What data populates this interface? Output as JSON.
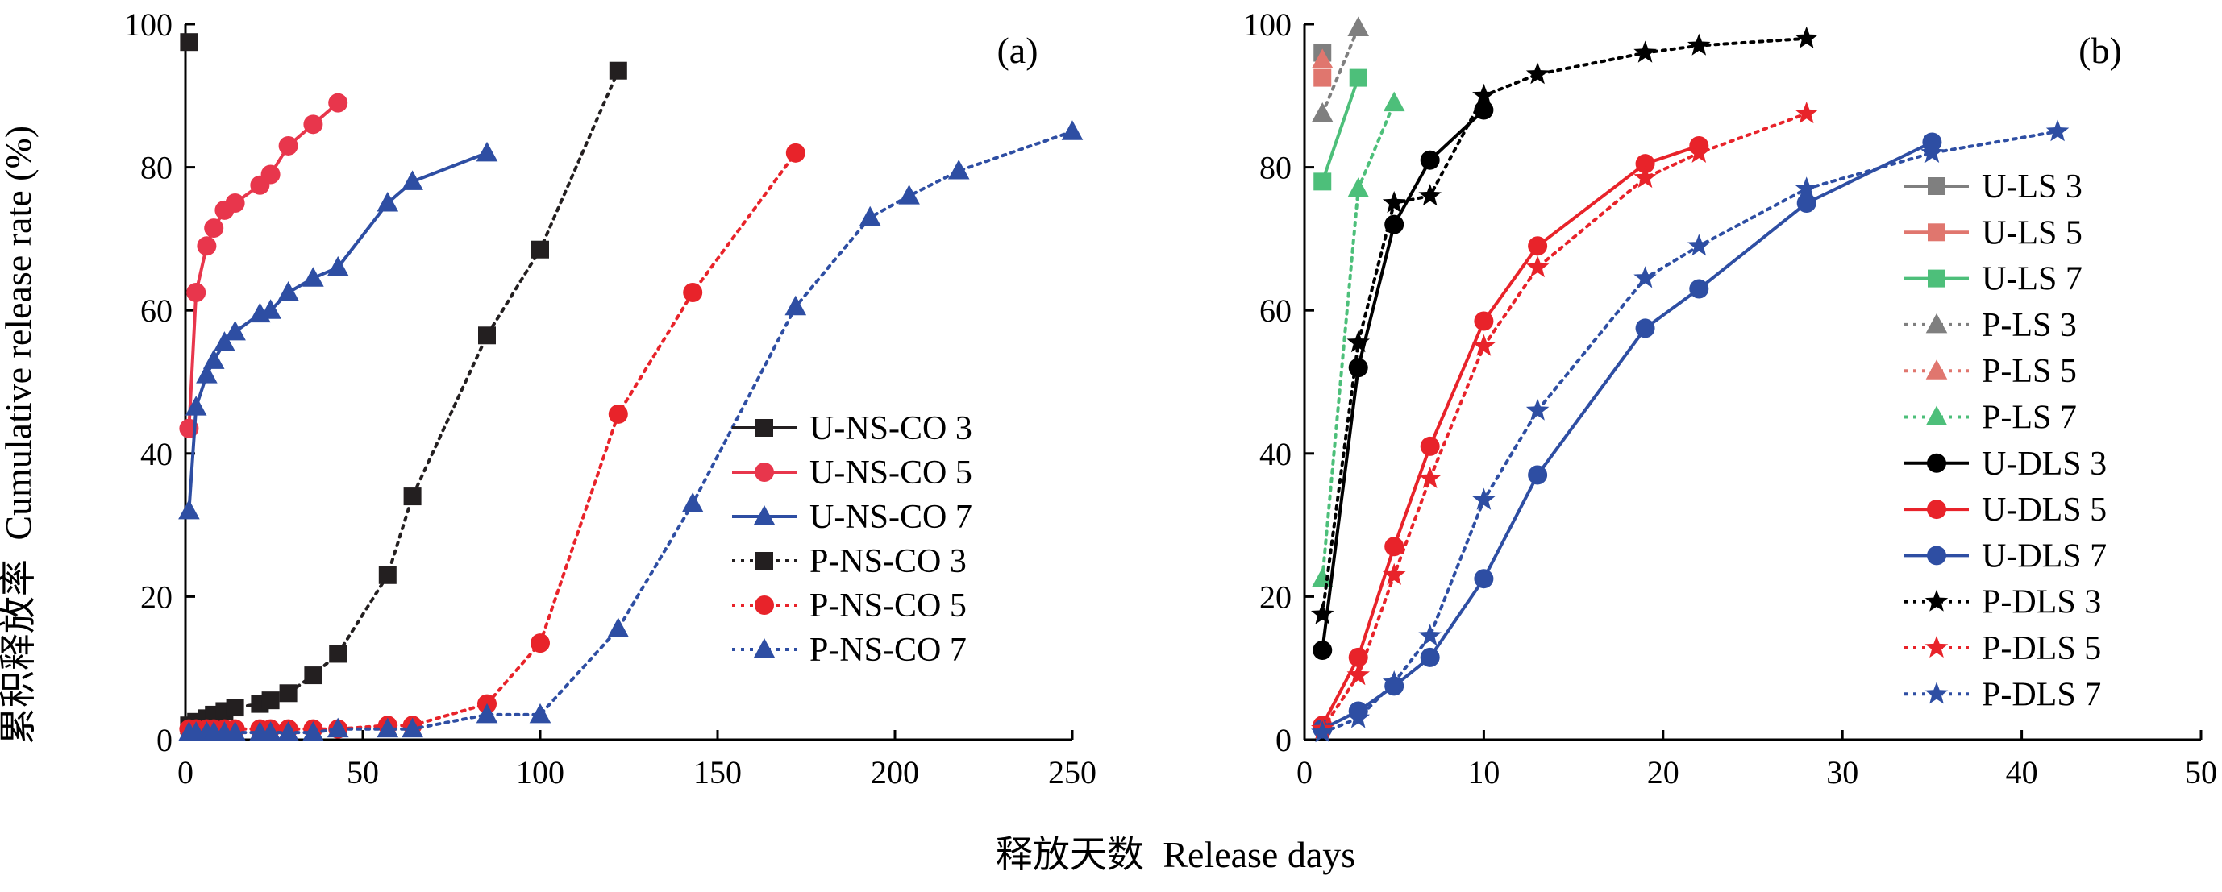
{
  "figure": {
    "ylabel_cn": "累积释放率",
    "ylabel_en": "Cumulative release rate (%)",
    "xlabel_cn": "释放天数",
    "xlabel_en": "Release days"
  },
  "chart_data": [
    {
      "type": "line",
      "panel_label": "(a)",
      "xlim": [
        0,
        250
      ],
      "ylim": [
        0,
        100
      ],
      "xticks": [
        0,
        50,
        100,
        150,
        200,
        250
      ],
      "yticks": [
        0,
        20,
        40,
        60,
        80,
        100
      ],
      "legend_position": "bottom-right",
      "series": [
        {
          "name": "U-NS-CO 3",
          "color": "#231f20",
          "marker": "square",
          "dash": "solid",
          "points": [
            [
              1,
              97.5
            ]
          ]
        },
        {
          "name": "U-NS-CO 5",
          "color": "#e8364c",
          "marker": "circle",
          "dash": "solid",
          "points": [
            [
              1,
              43.5
            ],
            [
              3,
              62.5
            ],
            [
              6,
              69
            ],
            [
              8,
              71.5
            ],
            [
              11,
              74
            ],
            [
              14,
              75
            ],
            [
              21,
              77.5
            ],
            [
              24,
              79
            ],
            [
              29,
              83
            ],
            [
              36,
              86
            ],
            [
              43,
              89
            ]
          ]
        },
        {
          "name": "U-NS-CO 7",
          "color": "#2e4ea3",
          "marker": "triangle",
          "dash": "solid",
          "points": [
            [
              1,
              32
            ],
            [
              3,
              46.5
            ],
            [
              6,
              51
            ],
            [
              8,
              53
            ],
            [
              11,
              55.5
            ],
            [
              14,
              57
            ],
            [
              21,
              59.5
            ],
            [
              24,
              60
            ],
            [
              29,
              62.5
            ],
            [
              36,
              64.5
            ],
            [
              43,
              66
            ],
            [
              57,
              75
            ],
            [
              64,
              78
            ],
            [
              85,
              82
            ]
          ]
        },
        {
          "name": "P-NS-CO 3",
          "color": "#231f20",
          "marker": "square",
          "dash": "dotted",
          "points": [
            [
              1,
              2
            ],
            [
              3,
              2.5
            ],
            [
              6,
              3
            ],
            [
              8,
              3.5
            ],
            [
              11,
              4
            ],
            [
              14,
              4.5
            ],
            [
              21,
              5
            ],
            [
              24,
              5.5
            ],
            [
              29,
              6.5
            ],
            [
              36,
              9
            ],
            [
              43,
              12
            ],
            [
              57,
              23
            ],
            [
              64,
              34
            ],
            [
              85,
              56.5
            ],
            [
              100,
              68.5
            ],
            [
              122,
              93.5
            ]
          ]
        },
        {
          "name": "P-NS-CO 5",
          "color": "#e8232a",
          "marker": "circle",
          "dash": "dotted",
          "points": [
            [
              1,
              1.5
            ],
            [
              3,
              1.5
            ],
            [
              6,
              1.5
            ],
            [
              8,
              1.5
            ],
            [
              11,
              1.5
            ],
            [
              14,
              1.5
            ],
            [
              21,
              1.5
            ],
            [
              24,
              1.5
            ],
            [
              29,
              1.5
            ],
            [
              36,
              1.5
            ],
            [
              43,
              1.5
            ],
            [
              57,
              2
            ],
            [
              64,
              2
            ],
            [
              85,
              5
            ],
            [
              100,
              13.5
            ],
            [
              122,
              45.5
            ],
            [
              143,
              62.5
            ],
            [
              172,
              82
            ]
          ]
        },
        {
          "name": "P-NS-CO 7",
          "color": "#2e4ea3",
          "marker": "triangle",
          "dash": "dotted",
          "points": [
            [
              1,
              1
            ],
            [
              3,
              1
            ],
            [
              6,
              1
            ],
            [
              8,
              1
            ],
            [
              11,
              1
            ],
            [
              14,
              1
            ],
            [
              21,
              1
            ],
            [
              24,
              1
            ],
            [
              29,
              1
            ],
            [
              36,
              1
            ],
            [
              43,
              1.5
            ],
            [
              57,
              1.5
            ],
            [
              64,
              1.5
            ],
            [
              85,
              3.5
            ],
            [
              100,
              3.5
            ],
            [
              122,
              15.5
            ],
            [
              143,
              33
            ],
            [
              172,
              60.5
            ],
            [
              193,
              73
            ],
            [
              204,
              76
            ],
            [
              218,
              79.5
            ],
            [
              250,
              85
            ]
          ]
        }
      ]
    },
    {
      "type": "line",
      "panel_label": "(b)",
      "xlim": [
        0,
        50
      ],
      "ylim": [
        0,
        100
      ],
      "xticks": [
        0,
        10,
        20,
        30,
        40,
        50
      ],
      "yticks": [
        0,
        20,
        40,
        60,
        80,
        100
      ],
      "legend_position": "right",
      "series": [
        {
          "name": "U-LS 3",
          "color": "#7f7f7f",
          "marker": "square",
          "dash": "solid",
          "points": [
            [
              1,
              96
            ]
          ]
        },
        {
          "name": "U-LS 5",
          "color": "#e0766e",
          "marker": "square",
          "dash": "solid",
          "points": [
            [
              1,
              92.5
            ]
          ]
        },
        {
          "name": "U-LS 7",
          "color": "#4dbf7a",
          "marker": "square",
          "dash": "solid",
          "points": [
            [
              1,
              78
            ],
            [
              3,
              92.5
            ]
          ]
        },
        {
          "name": "P-LS 3",
          "color": "#7f7f7f",
          "marker": "triangle",
          "dash": "dotted",
          "points": [
            [
              1,
              87.5
            ],
            [
              3,
              99.5
            ]
          ]
        },
        {
          "name": "P-LS 5",
          "color": "#e0766e",
          "marker": "triangle",
          "dash": "dotted",
          "points": [
            [
              1,
              95
            ]
          ]
        },
        {
          "name": "P-LS 7",
          "color": "#4dbf7a",
          "marker": "triangle",
          "dash": "dotted",
          "points": [
            [
              1,
              22.5
            ],
            [
              3,
              77
            ],
            [
              5,
              89
            ]
          ]
        },
        {
          "name": "U-DLS 3",
          "color": "#000000",
          "marker": "circle",
          "dash": "solid",
          "points": [
            [
              1,
              12.5
            ],
            [
              3,
              52
            ],
            [
              5,
              72
            ],
            [
              7,
              81
            ],
            [
              10,
              88
            ]
          ]
        },
        {
          "name": "U-DLS 5",
          "color": "#e8232a",
          "marker": "circle",
          "dash": "solid",
          "points": [
            [
              1,
              2
            ],
            [
              3,
              11.5
            ],
            [
              5,
              27
            ],
            [
              7,
              41
            ],
            [
              10,
              58.5
            ],
            [
              13,
              69
            ],
            [
              19,
              80.5
            ],
            [
              22,
              83
            ]
          ]
        },
        {
          "name": "U-DLS 7",
          "color": "#2e4ea3",
          "marker": "circle",
          "dash": "solid",
          "points": [
            [
              1,
              1.5
            ],
            [
              3,
              4
            ],
            [
              5,
              7.5
            ],
            [
              7,
              11.5
            ],
            [
              10,
              22.5
            ],
            [
              13,
              37
            ],
            [
              19,
              57.5
            ],
            [
              22,
              63
            ],
            [
              28,
              75
            ],
            [
              35,
              83.5
            ]
          ]
        },
        {
          "name": "P-DLS 3",
          "color": "#000000",
          "marker": "star",
          "dash": "dotted",
          "points": [
            [
              1,
              17.5
            ],
            [
              3,
              55.5
            ],
            [
              5,
              75
            ],
            [
              7,
              76
            ],
            [
              10,
              90
            ],
            [
              13,
              93
            ],
            [
              19,
              96
            ],
            [
              22,
              97
            ],
            [
              28,
              98
            ]
          ]
        },
        {
          "name": "P-DLS 5",
          "color": "#e8232a",
          "marker": "star",
          "dash": "dotted",
          "points": [
            [
              1,
              1.5
            ],
            [
              3,
              9
            ],
            [
              5,
              23
            ],
            [
              7,
              36.5
            ],
            [
              10,
              55
            ],
            [
              13,
              66
            ],
            [
              19,
              78.5
            ],
            [
              22,
              82
            ],
            [
              28,
              87.5
            ]
          ]
        },
        {
          "name": "P-DLS 7",
          "color": "#2e4ea3",
          "marker": "star",
          "dash": "dotted",
          "points": [
            [
              1,
              1
            ],
            [
              3,
              3
            ],
            [
              5,
              8
            ],
            [
              7,
              14.5
            ],
            [
              10,
              33.5
            ],
            [
              13,
              46
            ],
            [
              19,
              64.5
            ],
            [
              22,
              69
            ],
            [
              28,
              77
            ],
            [
              35,
              82
            ],
            [
              42,
              85
            ]
          ]
        }
      ]
    }
  ]
}
